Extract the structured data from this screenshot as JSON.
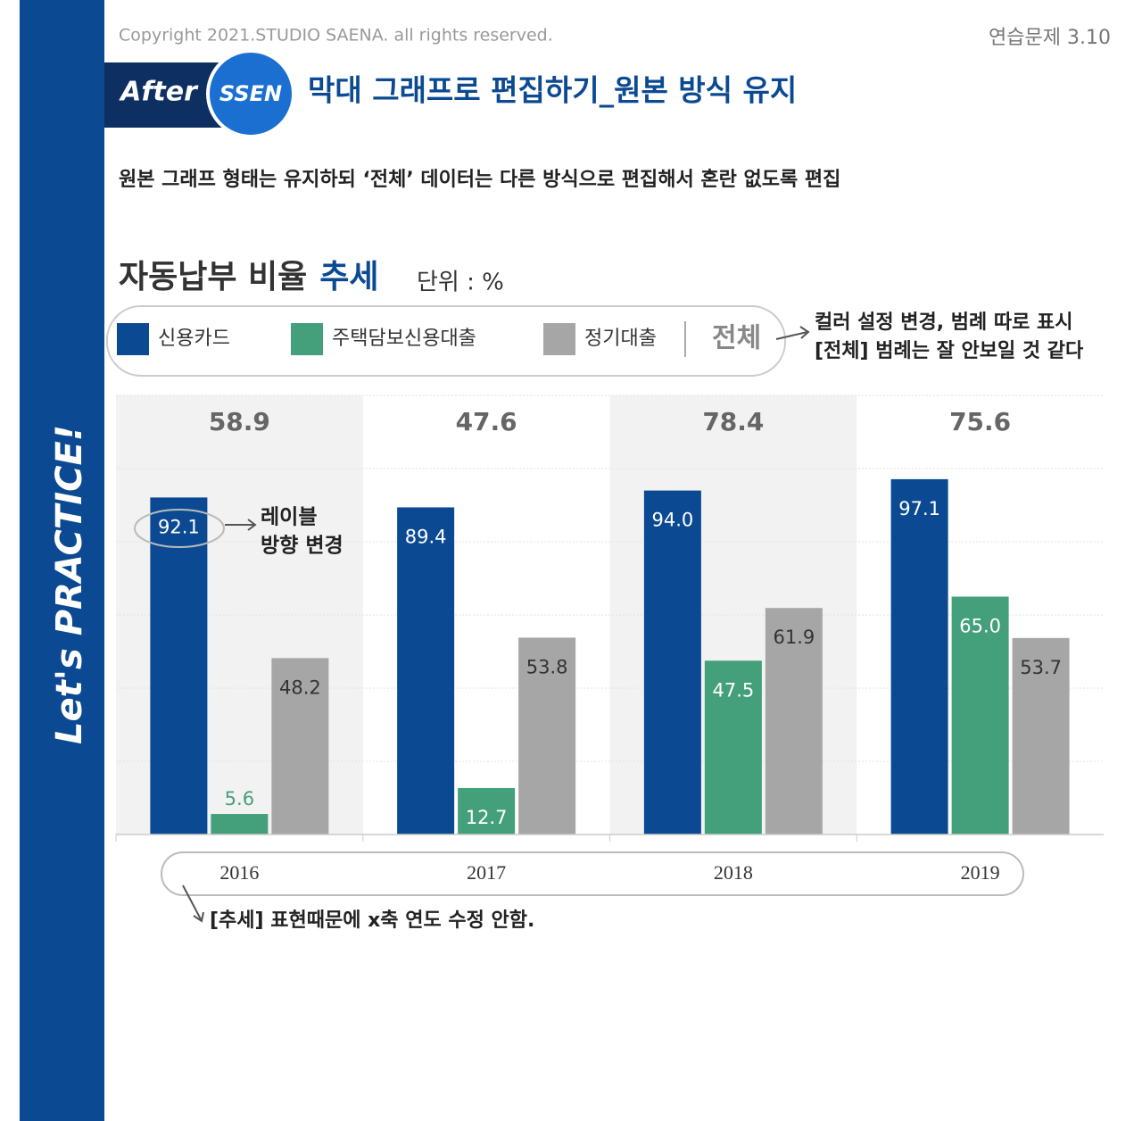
{
  "header": {
    "copyright": "Copyright 2021.STUDIO SAENA. all rights reserved.",
    "page_number": "연습문제 3.10",
    "badge_left": "After",
    "badge_right": "SSEN",
    "title": "막대 그래프로 편집하기_원본 방식 유지",
    "description": "원본 그래프 형태는 유지하되 ‘전체’ 데이터는 다른 방식으로 편집해서 혼란 없도록 편집"
  },
  "side_label": "Let's PRACTICE!",
  "chart_data": {
    "type": "bar",
    "title": "자동납부 비율",
    "title_accent": "추세",
    "unit": "단위 : %",
    "categories": [
      "2016",
      "2017",
      "2018",
      "2019"
    ],
    "series": [
      {
        "name": "신용카드",
        "color": "#0b4a92",
        "values": [
          92.1,
          89.4,
          94.0,
          97.1
        ],
        "value_labels": [
          "92.1",
          "89.4",
          "94.0",
          "97.1"
        ]
      },
      {
        "name": "주택담보신용대출",
        "color": "#44a07a",
        "values": [
          5.6,
          12.7,
          47.5,
          65.0
        ],
        "value_labels": [
          "5.6",
          "12.7",
          "47.5",
          "65.0"
        ]
      },
      {
        "name": "정기대출",
        "color": "#a6a6a6",
        "values": [
          48.2,
          53.8,
          61.9,
          53.7
        ],
        "value_labels": [
          "48.2",
          "53.8",
          "61.9",
          "53.7"
        ]
      }
    ],
    "totals": {
      "name": "전체",
      "values": [
        58.9,
        47.6,
        78.4,
        75.6
      ]
    },
    "ylim": [
      0,
      120
    ],
    "yticks": [
      0,
      20,
      40,
      60,
      80,
      100,
      120
    ],
    "grid": true,
    "annotations": {
      "legend_note": [
        "컬러 설정 변경, 범례 따로 표시",
        "[전체] 범례는 잘 안보일 것 같다"
      ],
      "label_note": [
        "레이블",
        "방향 변경"
      ],
      "axis_note": [
        "[추세] 표현때문에 x축 연도 수정 안함."
      ]
    }
  }
}
